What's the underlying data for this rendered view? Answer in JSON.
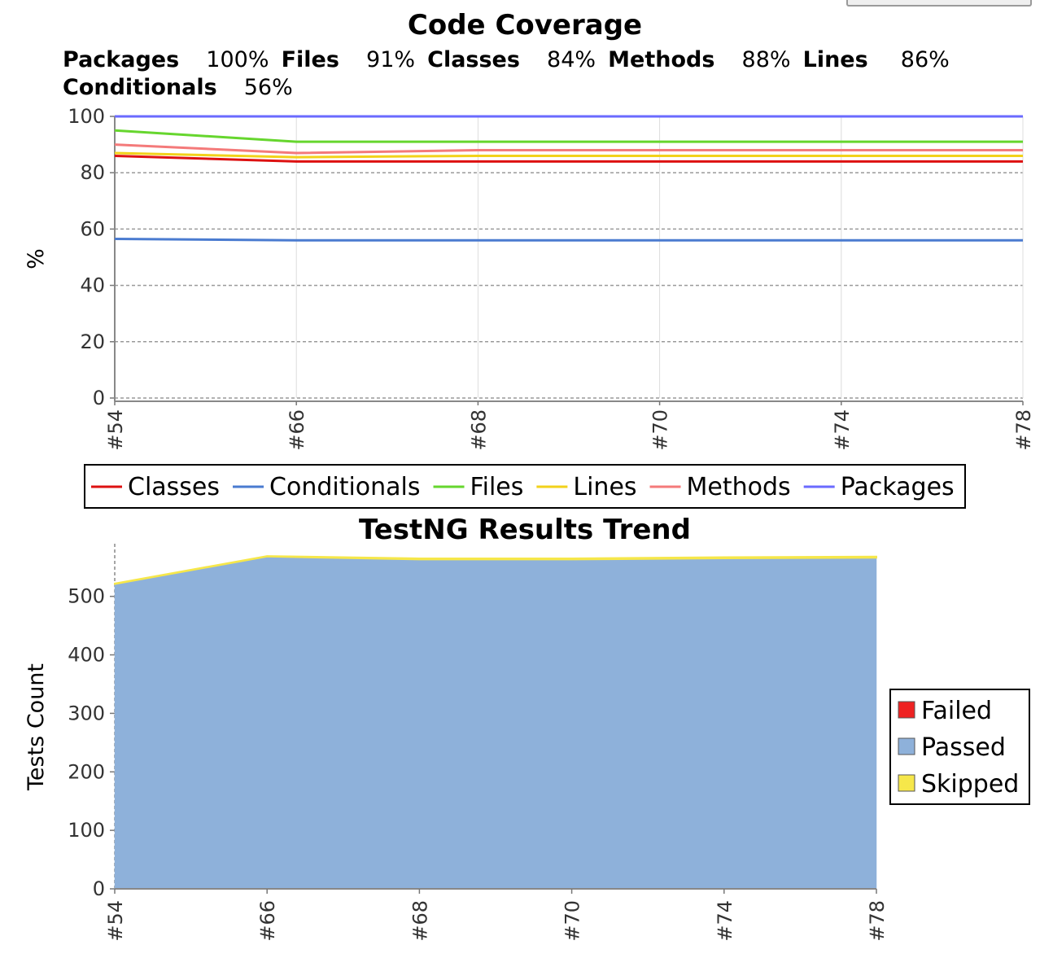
{
  "colors": {
    "Classes": "#dd1111",
    "Conditionals": "#4a7bd0",
    "Files": "#66d62e",
    "Lines": "#f2d21a",
    "Methods": "#f47a7a",
    "Packages": "#6a6aff",
    "Failed": "#ee2222",
    "Passed": "#8eb1da",
    "Skipped": "#f6e74a"
  },
  "coverage_summary": [
    {
      "label": "Packages",
      "value": "100%"
    },
    {
      "label": "Files",
      "value": "91%"
    },
    {
      "label": "Classes",
      "value": "84%"
    },
    {
      "label": "Methods",
      "value": "88%"
    },
    {
      "label": "Lines",
      "value": "86%"
    },
    {
      "label": "Conditionals",
      "value": "56%"
    }
  ],
  "chart_data": [
    {
      "type": "line",
      "title": "Code Coverage",
      "xlabel": "",
      "ylabel": "%",
      "ylim": [
        0,
        100
      ],
      "yticks": [
        0,
        20,
        40,
        60,
        80,
        100
      ],
      "grid": true,
      "legend": "bottom",
      "categories": [
        "#54",
        "#66",
        "#68",
        "#70",
        "#74",
        "#78"
      ],
      "series": [
        {
          "name": "Classes",
          "values": [
            86,
            84,
            84,
            84,
            84,
            84
          ]
        },
        {
          "name": "Conditionals",
          "values": [
            56.5,
            56,
            56,
            56,
            56,
            56
          ]
        },
        {
          "name": "Files",
          "values": [
            95,
            91,
            91,
            91,
            91,
            91
          ]
        },
        {
          "name": "Lines",
          "values": [
            87,
            85.5,
            86,
            86,
            86,
            86
          ]
        },
        {
          "name": "Methods",
          "values": [
            90,
            87,
            88,
            88,
            88,
            88
          ]
        },
        {
          "name": "Packages",
          "values": [
            100,
            100,
            100,
            100,
            100,
            100
          ]
        }
      ]
    },
    {
      "type": "area",
      "stacked": true,
      "title": "TestNG Results Trend",
      "xlabel": "",
      "ylabel": "Tests Count",
      "ylim": [
        0,
        590
      ],
      "yticks": [
        0,
        100,
        200,
        300,
        400,
        500
      ],
      "grid": true,
      "legend": "right",
      "categories": [
        "#54",
        "#66",
        "#68",
        "#70",
        "#74",
        "#78"
      ],
      "series": [
        {
          "name": "Failed",
          "values": [
            0,
            0,
            0,
            0,
            0,
            0
          ]
        },
        {
          "name": "Passed",
          "values": [
            521,
            568,
            563,
            563,
            565,
            566
          ]
        },
        {
          "name": "Skipped",
          "values": [
            1,
            1,
            2,
            2,
            2,
            2
          ]
        }
      ]
    }
  ]
}
